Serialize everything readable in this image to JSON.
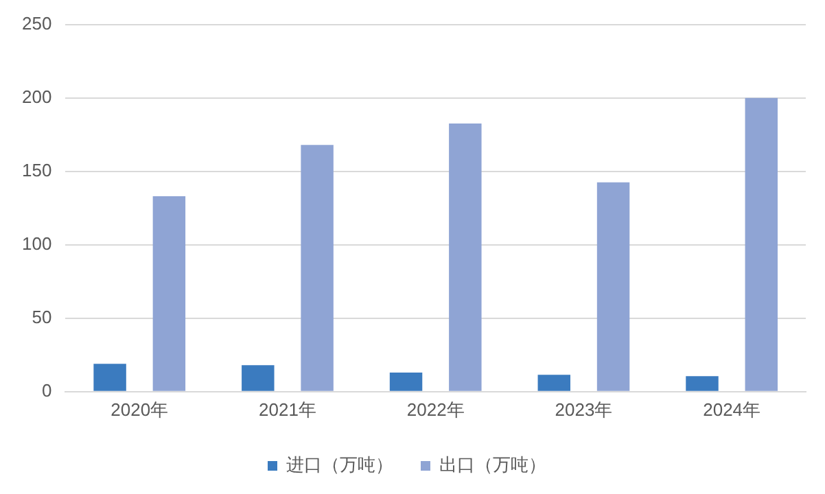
{
  "chart_data": {
    "type": "bar",
    "categories": [
      "2020年",
      "2021年",
      "2022年",
      "2023年",
      "2024年"
    ],
    "series": [
      {
        "name": "进口（万吨）",
        "color": "#3b7bbf",
        "values": [
          19,
          18,
          13,
          11.5,
          10.5
        ]
      },
      {
        "name": "出口（万吨）",
        "color": "#8fa4d4",
        "values": [
          133,
          168,
          182.5,
          142.5,
          200
        ]
      }
    ],
    "ylim": [
      0,
      250
    ],
    "yticks": [
      0,
      50,
      100,
      150,
      200,
      250
    ],
    "grid": "y",
    "legend": "bottom"
  }
}
